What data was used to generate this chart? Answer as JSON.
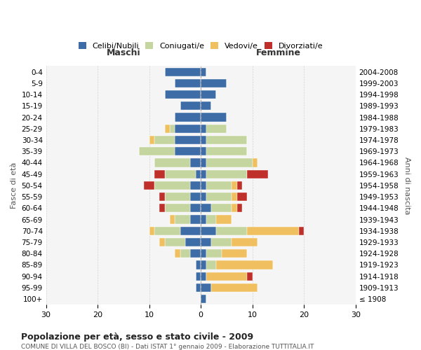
{
  "age_groups": [
    "100+",
    "95-99",
    "90-94",
    "85-89",
    "80-84",
    "75-79",
    "70-74",
    "65-69",
    "60-64",
    "55-59",
    "50-54",
    "45-49",
    "40-44",
    "35-39",
    "30-34",
    "25-29",
    "20-24",
    "15-19",
    "10-14",
    "5-9",
    "0-4"
  ],
  "birth_years": [
    "≤ 1908",
    "1909-1913",
    "1914-1918",
    "1919-1923",
    "1924-1928",
    "1929-1933",
    "1934-1938",
    "1939-1943",
    "1944-1948",
    "1949-1953",
    "1954-1958",
    "1959-1963",
    "1964-1968",
    "1969-1973",
    "1974-1978",
    "1979-1983",
    "1984-1988",
    "1989-1993",
    "1994-1998",
    "1999-2003",
    "2004-2008"
  ],
  "colors": {
    "celibi": "#3e6ca6",
    "coniugati": "#c5d5a0",
    "vedovi": "#f0c060",
    "divorziati": "#c0302a"
  },
  "males": {
    "celibi": [
      0,
      1,
      1,
      1,
      2,
      3,
      4,
      2,
      2,
      2,
      2,
      1,
      2,
      5,
      5,
      5,
      5,
      4,
      7,
      5,
      7
    ],
    "coniugati": [
      0,
      0,
      0,
      0,
      2,
      4,
      5,
      3,
      5,
      5,
      7,
      6,
      7,
      7,
      4,
      1,
      0,
      0,
      0,
      0,
      0
    ],
    "vedovi": [
      0,
      0,
      0,
      0,
      1,
      1,
      1,
      1,
      0,
      0,
      0,
      0,
      0,
      0,
      1,
      1,
      0,
      0,
      0,
      0,
      0
    ],
    "divorziati": [
      0,
      0,
      0,
      0,
      0,
      0,
      0,
      0,
      1,
      1,
      2,
      2,
      0,
      0,
      0,
      0,
      0,
      0,
      0,
      0,
      0
    ]
  },
  "females": {
    "nubili": [
      1,
      2,
      1,
      1,
      1,
      2,
      3,
      1,
      2,
      1,
      1,
      1,
      1,
      1,
      1,
      1,
      5,
      2,
      3,
      5,
      1
    ],
    "coniugate": [
      0,
      0,
      0,
      2,
      3,
      4,
      6,
      2,
      4,
      5,
      5,
      8,
      9,
      8,
      8,
      4,
      0,
      0,
      0,
      0,
      0
    ],
    "vedove": [
      0,
      9,
      8,
      11,
      5,
      5,
      10,
      3,
      1,
      1,
      1,
      0,
      1,
      0,
      0,
      0,
      0,
      0,
      0,
      0,
      0
    ],
    "divorziate": [
      0,
      0,
      1,
      0,
      0,
      0,
      1,
      0,
      1,
      2,
      1,
      4,
      0,
      0,
      0,
      0,
      0,
      0,
      0,
      0,
      0
    ]
  },
  "title": "Popolazione per età, sesso e stato civile - 2009",
  "subtitle": "COMUNE DI VILLA DEL BOSCO (BI) - Dati ISTAT 1° gennaio 2009 - Elaborazione TUTTITALIA.IT",
  "xlabel_left": "Maschi",
  "xlabel_right": "Femmine",
  "ylabel_left": "Fasce di età",
  "ylabel_right": "Anni di nascita",
  "xlim": 30,
  "legend_labels": [
    "Celibi/Nubili",
    "Coniugati/e",
    "Vedovi/e",
    "Divorziati/e"
  ]
}
